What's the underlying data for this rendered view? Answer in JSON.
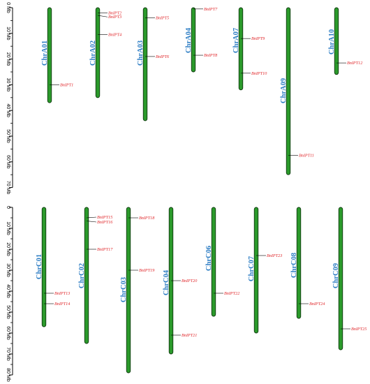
{
  "panels": [
    {
      "id": "A",
      "axis": {
        "ticks": [
          {
            "value": 0,
            "label": "0 Mb"
          },
          {
            "value": 10,
            "label": "10 Mb"
          },
          {
            "value": 20,
            "label": "20 Mb"
          },
          {
            "value": 30,
            "label": "30 Mb"
          },
          {
            "value": 40,
            "label": "40 Mb"
          },
          {
            "value": 50,
            "label": "50 Mb"
          },
          {
            "value": 60,
            "label": "60 Mb"
          },
          {
            "value": 70,
            "label": "70 Mb"
          }
        ]
      },
      "chromosomes": [
        {
          "name": "ChrA01",
          "length": 37,
          "genes": [
            {
              "name": "BnIPT1",
              "pos": 30
            }
          ]
        },
        {
          "name": "ChrA02",
          "length": 35,
          "genes": [
            {
              "name": "BnIPT2",
              "pos": 2
            },
            {
              "name": "BnIPT3",
              "pos": 3
            },
            {
              "name": "BnIPT4",
              "pos": 10.5
            }
          ]
        },
        {
          "name": "ChrA03",
          "length": 44,
          "genes": [
            {
              "name": "BnIPT5",
              "pos": 4
            },
            {
              "name": "BnIPT6",
              "pos": 19
            }
          ]
        },
        {
          "name": "ChrA04",
          "length": 25,
          "genes": [
            {
              "name": "BnIPT7",
              "pos": 0.5
            },
            {
              "name": "BnIPT8",
              "pos": 18.5
            }
          ]
        },
        {
          "name": "ChrA07",
          "length": 32,
          "genes": [
            {
              "name": "BnIPT9",
              "pos": 12
            },
            {
              "name": "BnIPT10",
              "pos": 25.5
            }
          ]
        },
        {
          "name": "ChrA09",
          "length": 65,
          "genes": [
            {
              "name": "BnIPT11",
              "pos": 57.5
            }
          ]
        },
        {
          "name": "ChrA10",
          "length": 26,
          "genes": [
            {
              "name": "BnIPT12",
              "pos": 21.5
            }
          ]
        }
      ]
    },
    {
      "id": "C",
      "axis": {
        "ticks": [
          {
            "value": 0,
            "label": "0"
          },
          {
            "value": 10,
            "label": "10 Mb"
          },
          {
            "value": 20,
            "label": "20 Mb"
          },
          {
            "value": 30,
            "label": "30 Mb"
          },
          {
            "value": 40,
            "label": "40 Mb"
          },
          {
            "value": 50,
            "label": "50 Mb"
          },
          {
            "value": 60,
            "label": "60 Mb"
          },
          {
            "value": 70,
            "label": "70 Mb"
          },
          {
            "value": 80,
            "label": "80 Mb"
          }
        ]
      },
      "chromosomes": [
        {
          "name": "ChrC01",
          "length": 57,
          "genes": [
            {
              "name": "BnIPT13",
              "pos": 41
            },
            {
              "name": "BnIPT14",
              "pos": 46
            }
          ]
        },
        {
          "name": "ChrC02",
          "length": 65,
          "genes": [
            {
              "name": "BnIPT15",
              "pos": 5
            },
            {
              "name": "BnIPT16",
              "pos": 6.5
            },
            {
              "name": "BnIPT17",
              "pos": 20
            }
          ]
        },
        {
          "name": "ChrC03",
          "length": 79,
          "genes": [
            {
              "name": "BnIPT18",
              "pos": 5
            },
            {
              "name": "BnIPT19",
              "pos": 30
            }
          ]
        },
        {
          "name": "ChrC04",
          "length": 70,
          "genes": [
            {
              "name": "BnIPT20",
              "pos": 35
            },
            {
              "name": "BnIPT21",
              "pos": 61
            }
          ]
        },
        {
          "name": "ChrC06",
          "length": 52,
          "genes": [
            {
              "name": "BnIPT22",
              "pos": 41
            }
          ]
        },
        {
          "name": "ChrC07",
          "length": 60,
          "genes": [
            {
              "name": "BnIPT23",
              "pos": 23
            }
          ]
        },
        {
          "name": "ChrC08",
          "length": 53,
          "genes": [
            {
              "name": "BnIPT24",
              "pos": 46
            }
          ]
        },
        {
          "name": "ChrC09",
          "length": 68,
          "genes": [
            {
              "name": "BnIPT25",
              "pos": 58
            }
          ]
        }
      ]
    }
  ],
  "colors": {
    "chromosome_fill": "#2b9a2b",
    "chromosome_outline": "#0f3a0f",
    "chromosome_name": "#2e7ec4",
    "gene_label": "#e0262a",
    "marker_line": "#000000",
    "axis": "#000000"
  }
}
